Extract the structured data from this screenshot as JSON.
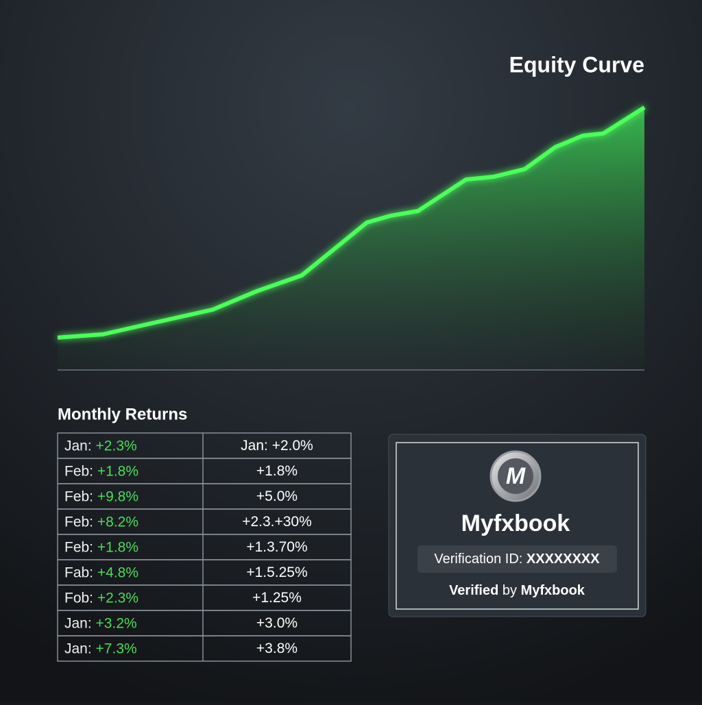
{
  "chart_data": {
    "type": "area",
    "title": "Equity Curve",
    "color": "#4cff5a",
    "x": [
      0,
      7.7,
      17,
      26.4,
      34,
      41.6,
      52.7,
      56.8,
      61.4,
      69.6,
      74.3,
      79.6,
      84.8,
      89.5,
      93,
      100
    ],
    "values": [
      11.8,
      13,
      17.5,
      22,
      28.8,
      34.5,
      53.8,
      56.3,
      58,
      69.5,
      70.5,
      73.3,
      81.3,
      85.5,
      86.3,
      95.8
    ],
    "xlim": [
      0,
      100
    ],
    "ylim": [
      0,
      100
    ]
  },
  "monthly_returns": {
    "title": "Monthly Returns",
    "rows": [
      {
        "month": "Jan:",
        "value": "+2.3%",
        "other": "Jan: +2.0%",
        "other_color": "#4cdc5a"
      },
      {
        "month": "Feb:",
        "value": "+1.8%",
        "other": "+1.8%",
        "other_color": "#4cdc5a"
      },
      {
        "month": "Feb:",
        "value": "+9.8%",
        "other": "+5.0%",
        "other_color": "#4cdc5a"
      },
      {
        "month": "Feb:",
        "value": "+8.2%",
        "other": "+2.3.+30%",
        "other_color": "#4cdc5a"
      },
      {
        "month": "Feb:",
        "value": "+1.8%",
        "other": "+1.3.70%",
        "other_color": "#4cdc5a"
      },
      {
        "month": "Fab:",
        "value": "+4.8%",
        "other": "+1.5.25%",
        "other_color": "#4cdc5a"
      },
      {
        "month": "Fob:",
        "value": "+2.3%",
        "other": "+1.25%",
        "other_color": "#4cdc5a"
      },
      {
        "month": "Jan:",
        "value": "+3.2%",
        "other": "+3.0%",
        "other_color": "#e8343a"
      },
      {
        "month": "Jan:",
        "value": "+7.3%",
        "other": "+3.8%",
        "other_color": "#e8343a"
      }
    ]
  },
  "badge": {
    "logo": "M",
    "brand": "Myfxbook",
    "verification_label": "Verification ID:",
    "verification_id": "XXXXXXXX",
    "verified": "Verified",
    "by": "by",
    "verified_brand": "Myfxbook"
  }
}
